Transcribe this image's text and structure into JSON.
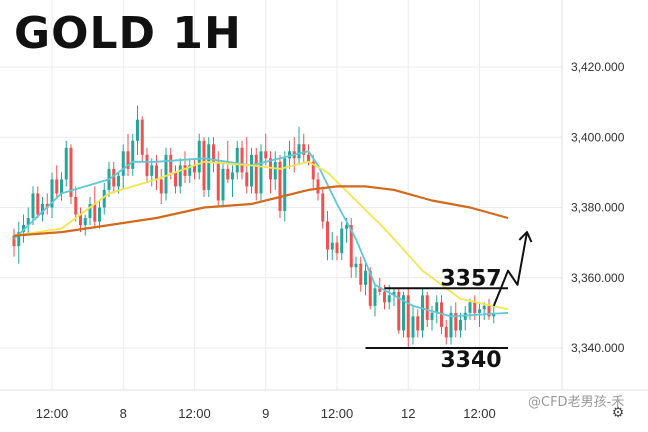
{
  "title": "GOLD 1H",
  "watermark": "@CFD老男孩-禾",
  "settings_icon": "settings-gear-icon",
  "colors": {
    "bull": "#26a69a",
    "bear": "#ef5350",
    "ma_fast": "#5ec8d6",
    "ma_mid": "#f2e54d",
    "ma_slow": "#d2691e",
    "level_line": "#111111",
    "arrow": "#111111"
  },
  "chart_data": {
    "type": "candlestick",
    "instrument": "GOLD",
    "timeframe": "1H",
    "ylim": [
      3334,
      3425
    ],
    "y_ticks": [
      "3,420.000",
      "3,400.000",
      "3,380.000",
      "3,360.000",
      "3,340.000"
    ],
    "y_tick_values": [
      3420,
      3400,
      3380,
      3360,
      3340
    ],
    "x_ticks": [
      "12:00",
      "8",
      "12:00",
      "9",
      "12:00",
      "12",
      "12:00"
    ],
    "x_tick_bar_index": [
      8,
      23,
      38,
      53,
      68,
      83,
      98
    ],
    "grid": true,
    "candles": [
      [
        3372,
        3374,
        3366,
        3369
      ],
      [
        3369,
        3376,
        3364,
        3373
      ],
      [
        3373,
        3378,
        3370,
        3375
      ],
      [
        3375,
        3380,
        3372,
        3377
      ],
      [
        3377,
        3386,
        3375,
        3384
      ],
      [
        3384,
        3386,
        3377,
        3378
      ],
      [
        3378,
        3383,
        3376,
        3381
      ],
      [
        3381,
        3384,
        3378,
        3380
      ],
      [
        3380,
        3390,
        3377,
        3388
      ],
      [
        3388,
        3392,
        3383,
        3384
      ],
      [
        3384,
        3390,
        3382,
        3388
      ],
      [
        3388,
        3399,
        3386,
        3397
      ],
      [
        3397,
        3398,
        3381,
        3383
      ],
      [
        3383,
        3386,
        3376,
        3378
      ],
      [
        3378,
        3380,
        3373,
        3375
      ],
      [
        3375,
        3378,
        3372,
        3377
      ],
      [
        3377,
        3383,
        3375,
        3381
      ],
      [
        3381,
        3386,
        3374,
        3376
      ],
      [
        3376,
        3382,
        3374,
        3380
      ],
      [
        3380,
        3387,
        3378,
        3385
      ],
      [
        3385,
        3393,
        3383,
        3391
      ],
      [
        3391,
        3393,
        3384,
        3386
      ],
      [
        3386,
        3390,
        3384,
        3389
      ],
      [
        3389,
        3398,
        3385,
        3396
      ],
      [
        3396,
        3401,
        3389,
        3391
      ],
      [
        3391,
        3401,
        3389,
        3399
      ],
      [
        3399,
        3409,
        3395,
        3405
      ],
      [
        3405,
        3406,
        3393,
        3395
      ],
      [
        3395,
        3397,
        3387,
        3389
      ],
      [
        3389,
        3394,
        3386,
        3392
      ],
      [
        3392,
        3395,
        3385,
        3388
      ],
      [
        3388,
        3391,
        3381,
        3384
      ],
      [
        3384,
        3397,
        3382,
        3395
      ],
      [
        3395,
        3397,
        3388,
        3390
      ],
      [
        3390,
        3392,
        3384,
        3386
      ],
      [
        3386,
        3394,
        3384,
        3392
      ],
      [
        3392,
        3396,
        3387,
        3389
      ],
      [
        3389,
        3394,
        3387,
        3392
      ],
      [
        3392,
        3394,
        3388,
        3390
      ],
      [
        3390,
        3401,
        3388,
        3399
      ],
      [
        3399,
        3400,
        3383,
        3385
      ],
      [
        3385,
        3400,
        3383,
        3398
      ],
      [
        3398,
        3400,
        3390,
        3393
      ],
      [
        3393,
        3396,
        3380,
        3382
      ],
      [
        3382,
        3393,
        3380,
        3391
      ],
      [
        3391,
        3399,
        3387,
        3388
      ],
      [
        3388,
        3392,
        3383,
        3390
      ],
      [
        3390,
        3399,
        3388,
        3397
      ],
      [
        3397,
        3399,
        3388,
        3390
      ],
      [
        3390,
        3400,
        3384,
        3386
      ],
      [
        3386,
        3397,
        3384,
        3395
      ],
      [
        3395,
        3397,
        3382,
        3384
      ],
      [
        3384,
        3398,
        3382,
        3396
      ],
      [
        3396,
        3401,
        3392,
        3394
      ],
      [
        3394,
        3396,
        3384,
        3388
      ],
      [
        3388,
        3396,
        3385,
        3393
      ],
      [
        3393,
        3395,
        3377,
        3379
      ],
      [
        3379,
        3396,
        3376,
        3394
      ],
      [
        3394,
        3399,
        3391,
        3396
      ],
      [
        3396,
        3400,
        3390,
        3394
      ],
      [
        3394,
        3403,
        3392,
        3398
      ],
      [
        3398,
        3401,
        3393,
        3395
      ],
      [
        3395,
        3398,
        3392,
        3393
      ],
      [
        3393,
        3395,
        3385,
        3388
      ],
      [
        3388,
        3390,
        3382,
        3384
      ],
      [
        3384,
        3386,
        3374,
        3376
      ],
      [
        3376,
        3379,
        3365,
        3368
      ],
      [
        3368,
        3373,
        3365,
        3370
      ],
      [
        3370,
        3372,
        3365,
        3367
      ],
      [
        3367,
        3376,
        3365,
        3374
      ],
      [
        3374,
        3377,
        3370,
        3375
      ],
      [
        3375,
        3377,
        3360,
        3363
      ],
      [
        3363,
        3366,
        3360,
        3364
      ],
      [
        3364,
        3366,
        3356,
        3358
      ],
      [
        3358,
        3365,
        3355,
        3362
      ],
      [
        3362,
        3363,
        3351,
        3352
      ],
      [
        3352,
        3358,
        3349,
        3357
      ],
      [
        3357,
        3360,
        3355,
        3356
      ],
      [
        3356,
        3358,
        3351,
        3353
      ],
      [
        3353,
        3358,
        3351,
        3355
      ],
      [
        3355,
        3357,
        3352,
        3356
      ],
      [
        3356,
        3357,
        3344,
        3345
      ],
      [
        3345,
        3356,
        3343,
        3355
      ],
      [
        3355,
        3357,
        3340,
        3343
      ],
      [
        3343,
        3352,
        3341,
        3349
      ],
      [
        3349,
        3351,
        3343,
        3345
      ],
      [
        3345,
        3357,
        3343,
        3355
      ],
      [
        3355,
        3356,
        3346,
        3348
      ],
      [
        3348,
        3352,
        3345,
        3350
      ],
      [
        3350,
        3355,
        3347,
        3353
      ],
      [
        3353,
        3355,
        3344,
        3346
      ],
      [
        3346,
        3348,
        3341,
        3343
      ],
      [
        3343,
        3352,
        3341,
        3350
      ],
      [
        3350,
        3353,
        3343,
        3345
      ],
      [
        3345,
        3350,
        3343,
        3348
      ],
      [
        3348,
        3352,
        3345,
        3350
      ],
      [
        3350,
        3354,
        3348,
        3353
      ],
      [
        3353,
        3355,
        3348,
        3350
      ],
      [
        3350,
        3353,
        3346,
        3351
      ],
      [
        3351,
        3353,
        3348,
        3352
      ],
      [
        3352,
        3354,
        3348,
        3349
      ],
      [
        3349,
        3352,
        3347,
        3350
      ]
    ],
    "moving_averages": [
      {
        "color": "#5ec8d6",
        "values": [
          [
            0,
            3371
          ],
          [
            10,
            3384
          ],
          [
            20,
            3388
          ],
          [
            25,
            3393
          ],
          [
            30,
            3393
          ],
          [
            40,
            3394
          ],
          [
            50,
            3392
          ],
          [
            56,
            3394
          ],
          [
            62,
            3396
          ],
          [
            64,
            3392
          ],
          [
            68,
            3381
          ],
          [
            72,
            3371
          ],
          [
            76,
            3358
          ],
          [
            84,
            3352
          ],
          [
            92,
            3349
          ],
          [
            104,
            3350
          ]
        ]
      },
      {
        "color": "#f2e54d",
        "values": [
          [
            0,
            3372
          ],
          [
            10,
            3374
          ],
          [
            20,
            3384
          ],
          [
            30,
            3388
          ],
          [
            40,
            3393
          ],
          [
            50,
            3392
          ],
          [
            56,
            3391
          ],
          [
            62,
            3393
          ],
          [
            66,
            3390
          ],
          [
            72,
            3382
          ],
          [
            78,
            3374
          ],
          [
            86,
            3362
          ],
          [
            94,
            3354
          ],
          [
            104,
            3351
          ]
        ]
      },
      {
        "color": "#d2691e",
        "values": [
          [
            0,
            3372
          ],
          [
            10,
            3373
          ],
          [
            20,
            3375
          ],
          [
            30,
            3377
          ],
          [
            40,
            3380
          ],
          [
            50,
            3381
          ],
          [
            56,
            3383
          ],
          [
            62,
            3385
          ],
          [
            68,
            3386
          ],
          [
            74,
            3386
          ],
          [
            80,
            3385
          ],
          [
            88,
            3382
          ],
          [
            96,
            3380
          ],
          [
            104,
            3377
          ]
        ]
      }
    ],
    "annotations": [
      {
        "label": "3357",
        "value": 3357,
        "from_bar": 78,
        "to_bar": 104
      },
      {
        "label": "3340",
        "value": 3340,
        "from_bar": 74,
        "to_bar": 104
      }
    ],
    "projection": [
      [
        101,
        3352
      ],
      [
        104,
        3362
      ],
      [
        106,
        3358
      ],
      [
        108,
        3373
      ]
    ]
  }
}
